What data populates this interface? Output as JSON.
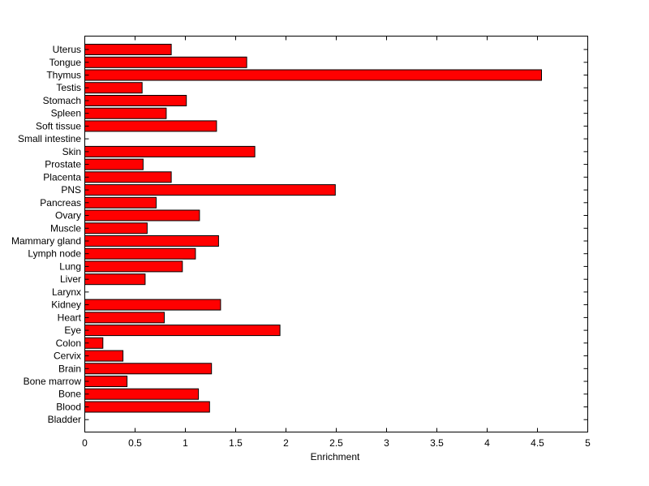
{
  "chart_data": {
    "type": "bar",
    "orientation": "horizontal",
    "title": "",
    "xlabel": "Enrichment",
    "ylabel": "",
    "xlim": [
      0,
      5
    ],
    "xticks": [
      "0",
      "0.5",
      "1",
      "1.5",
      "2",
      "2.5",
      "3",
      "3.5",
      "4",
      "4.5",
      "5"
    ],
    "grid": false,
    "legend": "none",
    "bar_color": "#ff0000",
    "categories": [
      "Bladder",
      "Blood",
      "Bone",
      "Bone marrow",
      "Brain",
      "Cervix",
      "Colon",
      "Eye",
      "Heart",
      "Kidney",
      "Larynx",
      "Liver",
      "Lung",
      "Lymph node",
      "Mammary gland",
      "Muscle",
      "Ovary",
      "Pancreas",
      "PNS",
      "Placenta",
      "Prostate",
      "Skin",
      "Small intestine",
      "Soft tissue",
      "Spleen",
      "Stomach",
      "Testis",
      "Thymus",
      "Tongue",
      "Uterus"
    ],
    "values": [
      0,
      1.24,
      1.13,
      0.42,
      1.26,
      0.38,
      0.18,
      1.94,
      0.79,
      1.35,
      0,
      0.6,
      0.97,
      1.1,
      1.33,
      0.62,
      1.14,
      0.71,
      2.49,
      0.86,
      0.58,
      1.69,
      0,
      1.31,
      0.81,
      1.01,
      0.57,
      4.54,
      1.61,
      0.86
    ]
  }
}
